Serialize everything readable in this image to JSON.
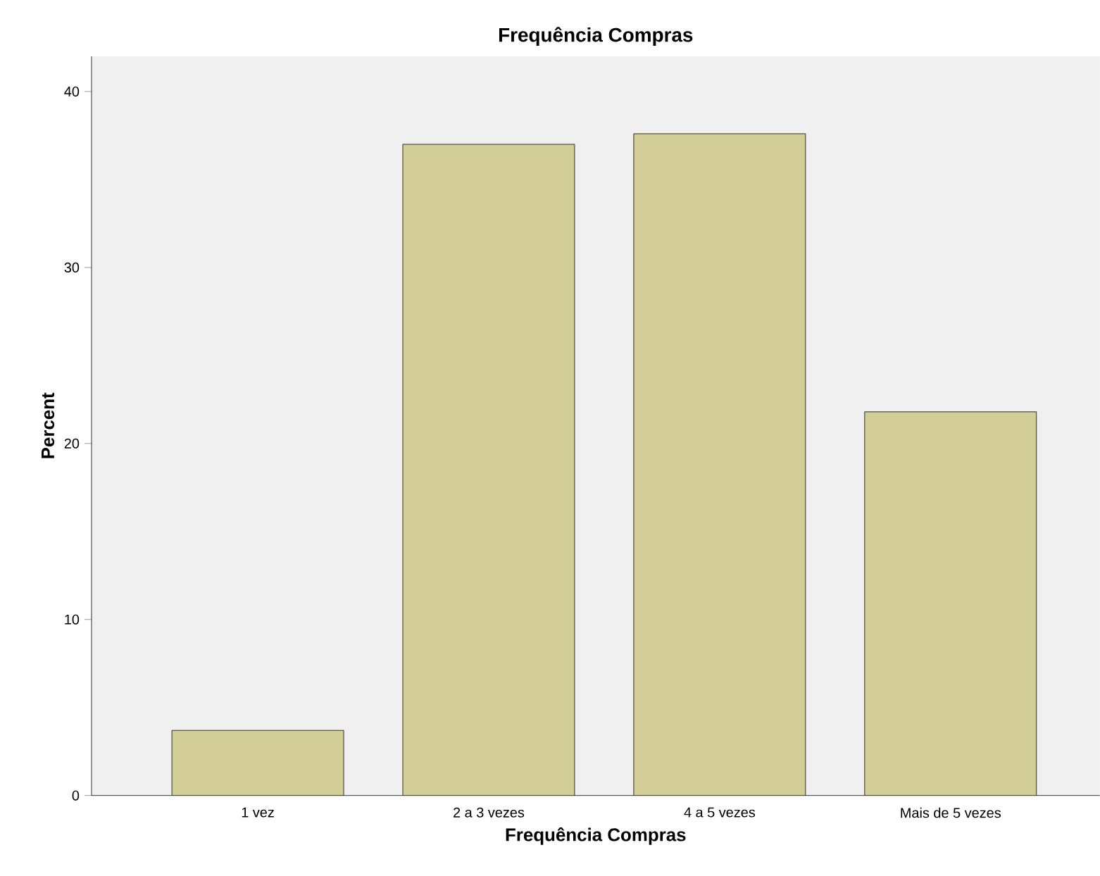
{
  "chart_data": {
    "type": "bar",
    "title": "Frequência Compras",
    "xlabel": "Frequência Compras",
    "ylabel": "Percent",
    "categories": [
      "1 vez",
      "2 a 3 vezes",
      "4 a 5 vezes",
      "Mais de 5 vezes"
    ],
    "values": [
      3.7,
      37.0,
      37.6,
      21.8
    ],
    "color": "#d3ce97",
    "ylim": [
      0,
      42
    ],
    "yticks": [
      0,
      10,
      20,
      30,
      40
    ],
    "grid": false
  }
}
